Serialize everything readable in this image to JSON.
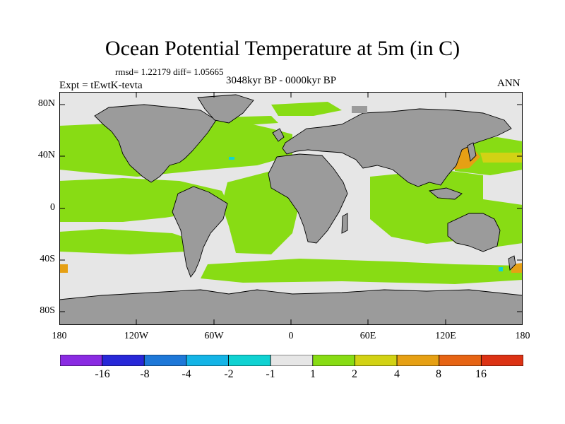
{
  "header": {
    "title": "Ocean Potential Temperature at 5m (in C)",
    "stats": "rmsd= 1.22179 diff= 1.05665",
    "experiment": "Expt = tEwtK-tevta",
    "period": "3048kyr BP - 0000kyr BP",
    "season": "ANN"
  },
  "axes": {
    "y_ticks": [
      "80N",
      "40N",
      "0",
      "40S",
      "80S"
    ],
    "x_ticks": [
      "180",
      "120W",
      "60W",
      "0",
      "60E",
      "120E",
      "180"
    ]
  },
  "colorbar": {
    "colors": [
      "#8a2be2",
      "#2828d8",
      "#1e78d8",
      "#14b4e6",
      "#10d2d2",
      "#e6e6e6",
      "#88dc14",
      "#d2d214",
      "#e6a014",
      "#e66414",
      "#dc3214"
    ],
    "labels": [
      "-16",
      "-8",
      "-4",
      "-2",
      "-1",
      "1",
      "2",
      "4",
      "8",
      "16"
    ]
  },
  "colors": {
    "land": "#9b9b9b",
    "near_zero": "#e6e6e6",
    "warm1": "#88dc14",
    "warm2": "#d2d214",
    "warm3": "#e6a014",
    "cool1": "#10d2d2"
  }
}
